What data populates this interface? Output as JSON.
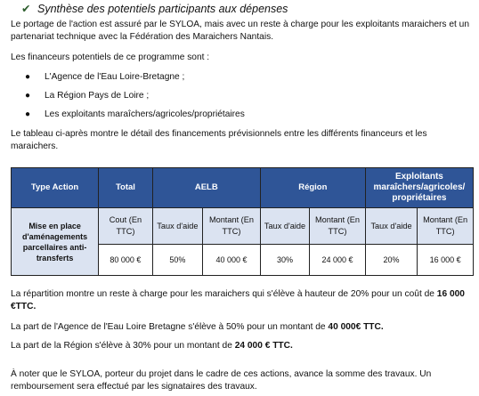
{
  "heading": {
    "text": "Synthèse des potentiels participants aux dépenses"
  },
  "para1": "Le portage de l'action est assuré par le SYLOA, mais avec un reste à charge pour les exploitants maraichers et un partenariat technique avec la Fédération des Maraichers Nantais.",
  "para2": "Les financeurs potentiels de ce programme sont :",
  "funders": [
    "L'Agence de l'Eau Loire-Bretagne ;",
    "La Région Pays de Loire ;",
    "Les exploitants maraîchers/agricoles/propriétaires"
  ],
  "para3": "Le tableau ci-après montre le détail des financements prévisionnels entre les différents financeurs et les maraichers.",
  "table": {
    "headers": {
      "type_action": "Type Action",
      "total": "Total",
      "aelb": "AELB",
      "region": "Région",
      "exploitants": "Exploitants maraîchers/agricoles/ propriétaires"
    },
    "subheaders": {
      "cout": "Cout (En TTC)",
      "aelb_taux": "Taux d'aide",
      "aelb_montant": "Montant (En TTC)",
      "region_taux": "Taux d'aide",
      "region_montant": "Montant (En TTC)",
      "exp_taux": "Taux d'aide",
      "exp_montant": "Montant (En TTC)"
    },
    "row_label": "Mise en place d'aménagements parcellaires anti-transferts",
    "values": {
      "cout": "80 000 €",
      "aelb_taux": "50%",
      "aelb_montant": "40 000 €",
      "region_taux": "30%",
      "region_montant": "24 000 €",
      "exp_taux": "20%",
      "exp_montant": "16 000 €"
    }
  },
  "para4": {
    "text": "La répartition montre un reste à charge pour les maraichers qui s'élève à hauteur de 20% pour un coût de ",
    "bold": "16 000 €TTC."
  },
  "para5": {
    "text": "La part de l'Agence de l'Eau Loire Bretagne s'élève à 50% pour un montant de ",
    "bold": "40 000€ TTC."
  },
  "para6": {
    "text": "La part de la Région s'élève à 30% pour un montant de ",
    "bold": "24 000 € TTC."
  },
  "para7": "À noter que le SYLOA, porteur du projet dans le cadre de ces actions, avance la somme des travaux. Un remboursement sera effectué par les signataires des travaux."
}
